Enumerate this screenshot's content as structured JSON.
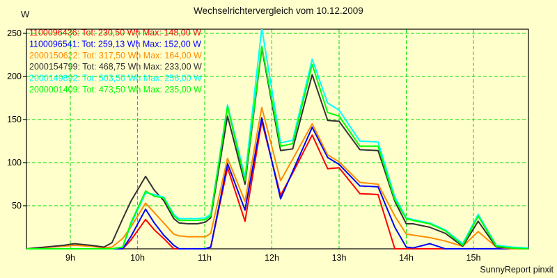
{
  "title": "Wechselrichtervergleich vom 10.12.2009",
  "footer": "SunnyReport pinxit",
  "y_axis": {
    "unit": "W",
    "ticks": [
      50,
      100,
      150,
      200,
      250
    ]
  },
  "x_axis": {
    "ticks": [
      {
        "hour": 9,
        "label": "9h"
      },
      {
        "hour": 10,
        "label": "10h"
      },
      {
        "hour": 11,
        "label": "11h"
      },
      {
        "hour": 12,
        "label": "12h"
      },
      {
        "hour": 13,
        "label": "13h"
      },
      {
        "hour": 14,
        "label": "14h"
      },
      {
        "hour": 15,
        "label": "15h"
      }
    ]
  },
  "colors": {
    "background": "#ffffcc",
    "grid": "#00dd00",
    "axis": "#000000",
    "title_text": "#111111"
  },
  "legend_format": {
    "tot_prefix": "Tot:",
    "max_prefix": "Max:"
  },
  "chart_data": {
    "type": "line",
    "title": "Wechselrichtervergleich vom 10.12.2009",
    "xlabel": "",
    "ylabel": "W",
    "ylim": [
      0,
      255
    ],
    "xlim_hours": [
      8.35,
      15.82
    ],
    "grid": true,
    "legend_position": "top-left",
    "x_hours": [
      8.35,
      8.9,
      9.06,
      9.31,
      9.5,
      9.62,
      9.78,
      9.9,
      10.12,
      10.25,
      10.39,
      10.54,
      10.62,
      10.75,
      10.89,
      11.01,
      11.09,
      11.34,
      11.6,
      11.85,
      12.13,
      12.31,
      12.6,
      12.83,
      13.0,
      13.31,
      13.58,
      13.83,
      14.0,
      14.1,
      14.35,
      14.58,
      14.84,
      15.07,
      15.34,
      15.57,
      15.82
    ],
    "series": [
      {
        "name": "1100096436",
        "color": "#ff0000",
        "tot": "230,50 Wh",
        "max": "148,00 W",
        "values": [
          0,
          0,
          0,
          0,
          0,
          0,
          0,
          10,
          34,
          22,
          12,
          0,
          0,
          0,
          0,
          0,
          2,
          94,
          32,
          148,
          62,
          88,
          132,
          93,
          94,
          64,
          63,
          0,
          0,
          0,
          0,
          0,
          0,
          0,
          0,
          0,
          0
        ]
      },
      {
        "name": "1100096541",
        "color": "#0000ff",
        "tot": "259,13 Wh",
        "max": "152,00 W",
        "values": [
          0,
          0,
          0,
          0,
          0,
          0,
          0,
          14,
          46,
          30,
          16,
          4,
          0,
          0,
          0,
          0,
          2,
          99,
          45,
          152,
          58,
          90,
          141,
          106,
          98,
          73,
          72,
          25,
          2,
          1,
          6,
          0,
          0,
          0,
          0,
          0,
          0
        ]
      },
      {
        "name": "2000150622",
        "color": "#ff8c00",
        "tot": "317,50 Wh",
        "max": "164,00 W",
        "values": [
          0,
          3,
          4,
          3,
          1,
          2,
          12,
          25,
          53,
          42,
          30,
          17,
          15,
          14,
          14,
          14,
          18,
          105,
          55,
          164,
          79,
          104,
          145,
          109,
          101,
          77,
          75,
          38,
          17,
          16,
          13,
          9,
          3,
          20,
          2,
          0,
          0
        ]
      },
      {
        "name": "2000154799",
        "color": "#333333",
        "tot": "468,75 Wh",
        "max": "233,00 W",
        "values": [
          0,
          4,
          6,
          4,
          2,
          7,
          35,
          55,
          84,
          68,
          56,
          35,
          30,
          29,
          29,
          31,
          36,
          154,
          75,
          233,
          114,
          116,
          202,
          149,
          148,
          115,
          114,
          55,
          29,
          29,
          25,
          18,
          3,
          32,
          2,
          1,
          0
        ]
      },
      {
        "name": "2000149892",
        "color": "#00ffff",
        "tot": "503,50 Wh",
        "max": "256,00 W",
        "values": [
          0,
          0,
          0,
          0,
          0,
          0,
          2,
          28,
          65,
          63,
          60,
          40,
          35,
          35,
          35,
          36,
          40,
          167,
          83,
          256,
          123,
          126,
          220,
          169,
          161,
          125,
          124,
          60,
          36,
          34,
          30,
          22,
          6,
          40,
          4,
          2,
          1
        ]
      },
      {
        "name": "2000001409",
        "color": "#00ff00",
        "tot": "473,50 Wh",
        "max": "235,00 W",
        "values": [
          0,
          0,
          0,
          0,
          0,
          0,
          2,
          30,
          67,
          61,
          59,
          38,
          33,
          33,
          33,
          34,
          38,
          165,
          79,
          235,
          119,
          122,
          214,
          158,
          154,
          119,
          119,
          57,
          35,
          33,
          29,
          21,
          4,
          38,
          3,
          1,
          0
        ]
      }
    ]
  }
}
